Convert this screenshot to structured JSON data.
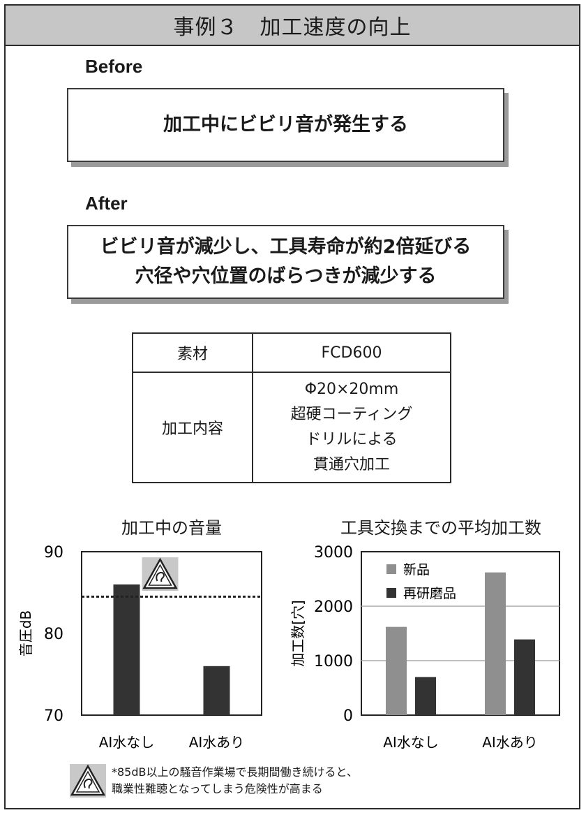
{
  "title": "事例３　加工速度の向上",
  "before": {
    "label": "Before",
    "text": "加工中にビビリ音が発生する"
  },
  "after": {
    "label": "After",
    "lines": [
      "ビビリ音が減少し、工具寿命が約2倍延びる",
      "穴径や穴位置のばらつきが減少する"
    ]
  },
  "spec_table": {
    "rows": [
      {
        "key": "素材",
        "value_lines": [
          "FCD600"
        ]
      },
      {
        "key": "加工内容",
        "value_lines": [
          "Φ20×20mm",
          "超硬コーティング",
          "ドリルによる",
          "貫通穴加工"
        ]
      }
    ]
  },
  "chart_data": [
    {
      "type": "bar",
      "title": "加工中の音量",
      "ylabel": "音圧dB",
      "categories": [
        "AI水なし",
        "AI水あり"
      ],
      "values": [
        86,
        76
      ],
      "ylim": [
        70,
        90
      ],
      "yticks": [
        70,
        80,
        90
      ],
      "reference_line": 84.5,
      "colors": {
        "bar": "#333333"
      }
    },
    {
      "type": "bar",
      "title": "工具交換までの平均加工数",
      "ylabel": "加工数[穴]",
      "categories": [
        "AI水なし",
        "AI水あり"
      ],
      "series": [
        {
          "name": "新品",
          "values": [
            1620,
            2620
          ],
          "color": "#8f8f8f"
        },
        {
          "name": "再研磨品",
          "values": [
            700,
            1390
          ],
          "color": "#333333"
        }
      ],
      "ylim": [
        0,
        3000
      ],
      "yticks": [
        0,
        1000,
        2000,
        3000
      ],
      "grid": true,
      "legend": "top-left"
    }
  ],
  "footnote": {
    "icon": "hearing-hazard-icon",
    "lines": [
      "*85dB以上の騒音作業場で長期間働き続けると、",
      "職業性難聴となってしまう危険性が高まる"
    ]
  }
}
